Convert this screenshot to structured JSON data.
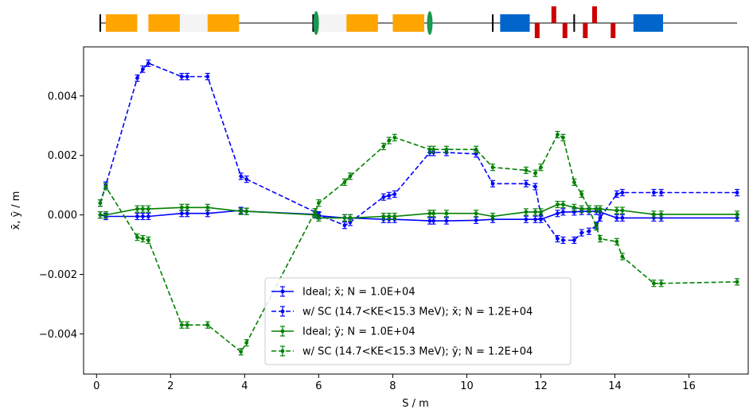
{
  "chart_data": {
    "type": "line",
    "xlabel": "S / m",
    "ylabel": "x̄, ȳ / m",
    "xlim": [
      -0.35,
      17.6
    ],
    "ylim": [
      -0.00535,
      0.00565
    ],
    "xticks": [
      0,
      2,
      4,
      6,
      8,
      10,
      12,
      14,
      16
    ],
    "yticks": [
      -0.004,
      -0.002,
      0.0,
      0.002,
      0.004
    ],
    "xtick_labels": [
      "0",
      "2",
      "4",
      "6",
      "8",
      "10",
      "12",
      "14",
      "16"
    ],
    "ytick_labels": [
      "−0.004",
      "−0.002",
      "0.000",
      "0.002",
      "0.004"
    ],
    "grid": false,
    "legend_position": "lower-center",
    "series": [
      {
        "name": "Ideal; x̄; N = 1.0E+04",
        "color": "#0000ff",
        "dash": false,
        "x": [
          0.1,
          0.25,
          1.1,
          1.25,
          1.4,
          2.3,
          2.45,
          3.0,
          3.9,
          4.05,
          5.9,
          6.0,
          6.7,
          6.85,
          7.75,
          7.9,
          8.05,
          9.0,
          9.1,
          9.45,
          10.25,
          10.7,
          11.6,
          11.85,
          12.0,
          12.45,
          12.6,
          12.9,
          13.1,
          13.3,
          13.5,
          13.6,
          14.05,
          14.2,
          15.05,
          15.25,
          17.3
        ],
        "y": [
          0.0,
          -5e-05,
          -5e-05,
          -5e-05,
          -5e-05,
          5e-05,
          5e-05,
          5e-05,
          0.00015,
          0.00012,
          2e-05,
          -3e-05,
          -0.0001,
          -0.0001,
          -0.00015,
          -0.00015,
          -0.00015,
          -0.0002,
          -0.0002,
          -0.0002,
          -0.00018,
          -0.00015,
          -0.00015,
          -0.00015,
          -0.00015,
          5e-05,
          0.0001,
          0.0001,
          0.00012,
          0.00012,
          0.00012,
          0.0001,
          -0.0001,
          -0.0001,
          -0.0001,
          -0.0001,
          -0.0001
        ]
      },
      {
        "name": "w/ SC (14.7<KE<15.3 MeV); x̄; N = 1.2E+04",
        "color": "#0000ff",
        "dash": true,
        "x": [
          0.1,
          0.25,
          1.1,
          1.25,
          1.4,
          2.3,
          2.45,
          3.0,
          3.9,
          4.05,
          5.9,
          6.0,
          6.7,
          6.85,
          7.75,
          7.9,
          8.05,
          9.0,
          9.1,
          9.45,
          10.25,
          10.7,
          11.6,
          11.85,
          12.0,
          12.45,
          12.6,
          12.9,
          13.1,
          13.3,
          13.5,
          13.6,
          14.05,
          14.2,
          15.05,
          15.25,
          17.3
        ],
        "y": [
          0.0004,
          0.001,
          0.0046,
          0.0049,
          0.0051,
          0.00465,
          0.00465,
          0.00465,
          0.0013,
          0.0012,
          0.0001,
          0.0,
          -0.00035,
          -0.00025,
          0.0006,
          0.00065,
          0.0007,
          0.0021,
          0.0021,
          0.0021,
          0.00205,
          0.00105,
          0.00105,
          0.00095,
          0.0,
          -0.0008,
          -0.00085,
          -0.00085,
          -0.0006,
          -0.00055,
          -0.00035,
          -0.0001,
          0.0007,
          0.00075,
          0.00075,
          0.00075,
          0.00075
        ]
      },
      {
        "name": "Ideal; ȳ; N = 1.0E+04",
        "color": "#008000",
        "dash": false,
        "x": [
          0.1,
          0.25,
          1.1,
          1.25,
          1.4,
          2.3,
          2.45,
          3.0,
          3.9,
          4.05,
          5.9,
          6.0,
          6.7,
          6.85,
          7.75,
          7.9,
          8.05,
          9.0,
          9.1,
          9.45,
          10.25,
          10.7,
          11.6,
          11.85,
          12.0,
          12.45,
          12.6,
          12.9,
          13.1,
          13.3,
          13.5,
          13.6,
          14.05,
          14.2,
          15.05,
          15.25,
          17.3
        ],
        "y": [
          0.0,
          0.0,
          0.0002,
          0.0002,
          0.0002,
          0.00025,
          0.00025,
          0.00025,
          0.00012,
          0.00012,
          0.0,
          -0.0001,
          -0.0001,
          -0.0001,
          -5e-05,
          -5e-05,
          -5e-05,
          5e-05,
          5e-05,
          5e-05,
          5e-05,
          -5e-05,
          0.0001,
          0.0001,
          0.0001,
          0.00035,
          0.00035,
          0.00025,
          0.0002,
          0.0002,
          0.0002,
          0.0002,
          0.00015,
          0.00015,
          2e-05,
          2e-05,
          2e-05
        ]
      },
      {
        "name": "w/ SC (14.7<KE<15.3 MeV); ȳ; N = 1.2E+04",
        "color": "#008000",
        "dash": true,
        "x": [
          0.1,
          0.25,
          1.1,
          1.25,
          1.4,
          2.3,
          2.45,
          3.0,
          3.9,
          4.05,
          5.9,
          6.0,
          6.7,
          6.85,
          7.75,
          7.9,
          8.05,
          9.0,
          9.1,
          9.45,
          10.25,
          10.7,
          11.6,
          11.85,
          12.0,
          12.45,
          12.6,
          12.9,
          13.1,
          13.3,
          13.5,
          13.6,
          14.05,
          14.2,
          15.05,
          15.25,
          17.3
        ],
        "y": [
          0.0004,
          0.00095,
          -0.00075,
          -0.0008,
          -0.00085,
          -0.0037,
          -0.0037,
          -0.0037,
          -0.0046,
          -0.0043,
          0.0001,
          0.0004,
          0.0011,
          0.0013,
          0.0023,
          0.0025,
          0.0026,
          0.0022,
          0.0022,
          0.0022,
          0.0022,
          0.0016,
          0.0015,
          0.0014,
          0.0016,
          0.0027,
          0.0026,
          0.0011,
          0.0007,
          0.0002,
          -0.0004,
          -0.0008,
          -0.0009,
          -0.0014,
          -0.0023,
          -0.0023,
          -0.00225
        ]
      }
    ]
  },
  "lattice": {
    "s_start": 0.1,
    "s_end": 17.3,
    "markers": [
      0.1,
      5.85,
      10.7,
      12.9
    ],
    "elements": [
      {
        "type": "dipole",
        "s0": 0.25,
        "s1": 1.1,
        "color": "#ffa500"
      },
      {
        "type": "drift",
        "s0": 1.1,
        "s1": 1.4,
        "color": "#ffffff"
      },
      {
        "type": "dipole",
        "s0": 1.4,
        "s1": 2.25,
        "color": "#ffa500"
      },
      {
        "type": "drift",
        "s0": 2.25,
        "s1": 3.0,
        "color": "#f4f4f4"
      },
      {
        "type": "dipole",
        "s0": 3.0,
        "s1": 3.85,
        "color": "#ffa500"
      },
      {
        "type": "drift",
        "s0": 5.95,
        "s1": 6.75,
        "color": "#f4f4f4"
      },
      {
        "type": "dipole",
        "s0": 6.75,
        "s1": 7.6,
        "color": "#ffa500"
      },
      {
        "type": "dipole",
        "s0": 8.0,
        "s1": 8.85,
        "color": "#ffa500"
      },
      {
        "type": "solenoid",
        "s0": 10.9,
        "s1": 11.7,
        "color": "#0066cc"
      },
      {
        "type": "solenoid",
        "s0": 14.5,
        "s1": 15.3,
        "color": "#0066cc"
      }
    ],
    "lenses": [
      {
        "s": 5.93,
        "color": "#1a9850"
      },
      {
        "s": 9.0,
        "color": "#1a9850"
      }
    ],
    "quads": [
      {
        "s": 11.9,
        "dir": "down"
      },
      {
        "s": 12.35,
        "dir": "up"
      },
      {
        "s": 12.65,
        "dir": "down"
      },
      {
        "s": 13.2,
        "dir": "down"
      },
      {
        "s": 13.45,
        "dir": "up"
      },
      {
        "s": 13.95,
        "dir": "down"
      }
    ],
    "quad_color": "#cc0000"
  }
}
